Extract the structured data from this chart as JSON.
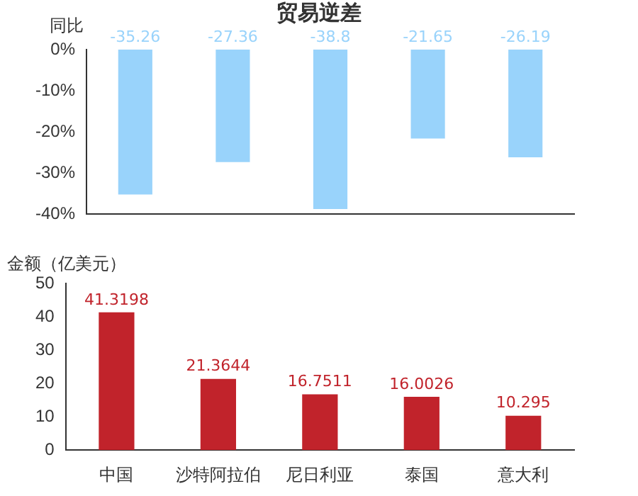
{
  "chart_data": [
    {
      "type": "bar",
      "title": "贸易逆差",
      "ylabel": "同比",
      "categories": [
        null,
        null,
        null,
        null,
        null
      ],
      "series": [
        {
          "color": "#99d3fb",
          "values": [
            -35.26,
            -27.36,
            -38.8,
            -21.65,
            -26.19
          ]
        }
      ],
      "ylim": [
        -40,
        0
      ],
      "yticks": [
        {
          "value": 0,
          "label": "0%"
        },
        {
          "value": -10,
          "label": "-10%"
        },
        {
          "value": -20,
          "label": "-20%"
        },
        {
          "value": -30,
          "label": "-30%"
        },
        {
          "value": -40,
          "label": "-40%"
        }
      ],
      "tick_labels": "y",
      "data_labels": true
    },
    {
      "type": "bar",
      "ylabel": "金额（亿美元）",
      "categories": [
        "中国",
        "沙特阿拉伯",
        "尼日利亚",
        "泰国",
        "意大利"
      ],
      "series": [
        {
          "color": "#c1232b",
          "values": [
            41.3198,
            21.3644,
            16.7511,
            16.0026,
            10.295
          ]
        }
      ],
      "ylim": [
        0,
        50
      ],
      "yticks": [
        0,
        10,
        20,
        30,
        40,
        50
      ],
      "data_labels": true
    }
  ]
}
